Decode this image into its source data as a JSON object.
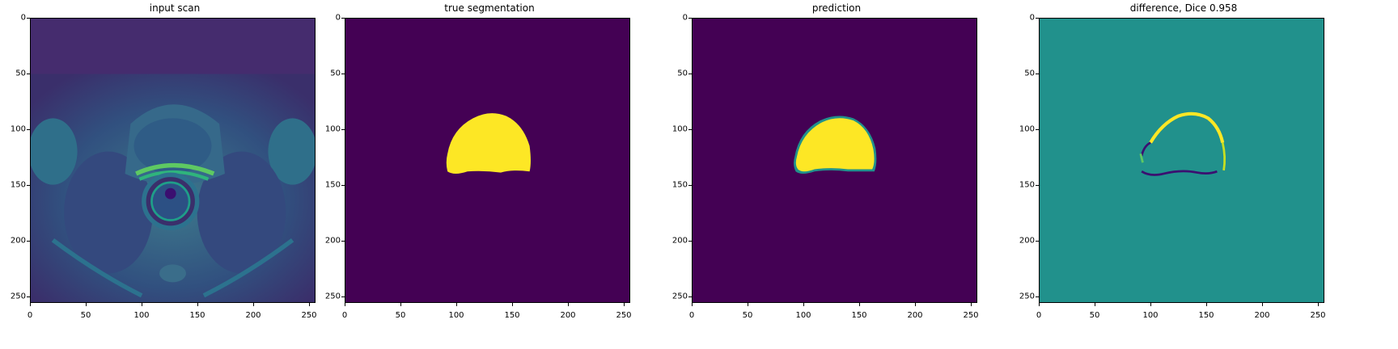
{
  "panels": [
    {
      "title": "input scan"
    },
    {
      "title": "true segmentation"
    },
    {
      "title": "prediction"
    },
    {
      "title": "difference, Dice 0.958"
    }
  ],
  "axis": {
    "x_ticks": [
      "0",
      "50",
      "100",
      "150",
      "200",
      "250"
    ],
    "y_ticks": [
      "0",
      "50",
      "100",
      "150",
      "200",
      "250"
    ]
  },
  "colors": {
    "background_dark": "#440154",
    "segment_yellow": "#fde725",
    "diff_teal": "#21918c",
    "diff_dark": "#3b0f70",
    "scan_base": "#3b5a8f",
    "scan_bright": "#5ec962"
  },
  "metrics": {
    "dice": 0.958
  }
}
